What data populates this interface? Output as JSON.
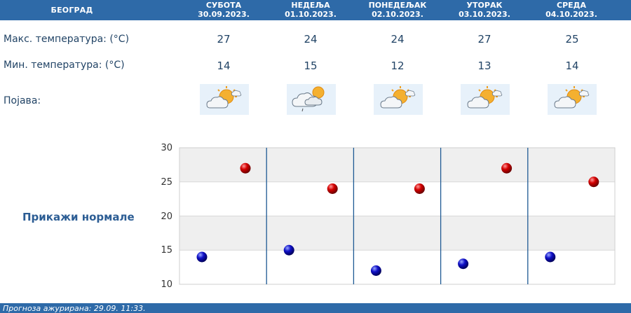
{
  "header": {
    "city": "БЕОГРАД",
    "days": [
      {
        "name": "СУБОТА",
        "date": "30.09.2023."
      },
      {
        "name": "НЕДЕЉА",
        "date": "01.10.2023."
      },
      {
        "name": "ПОНЕДЕЉАК",
        "date": "02.10.2023."
      },
      {
        "name": "УТОРАК",
        "date": "03.10.2023."
      },
      {
        "name": "СРЕДА",
        "date": "04.10.2023."
      }
    ]
  },
  "rows": {
    "max_label": "Макс. температура: (°C)",
    "min_label": "Мин. температура: (°C)",
    "weather_label": "Појава:"
  },
  "max_temps": [
    "27",
    "24",
    "24",
    "27",
    "25"
  ],
  "min_temps": [
    "14",
    "15",
    "12",
    "13",
    "14"
  ],
  "weather_icons": [
    "partly-sunny-icon",
    "cloud-sun-drizzle-icon",
    "partly-sunny-icon",
    "partly-sunny-icon",
    "partly-sunny-icon"
  ],
  "normals_link": "Прикажи нормале",
  "footer": "Прогноза ажурирана:  29.09.  11:33.",
  "colors": {
    "header": "#2e6aa8",
    "max_marker": "#cc0000",
    "min_marker": "#0000aa",
    "band": "#efefef",
    "divider": "#1f5a94"
  },
  "chart_data": {
    "type": "scatter",
    "categories": [
      "30.09.2023.",
      "01.10.2023.",
      "02.10.2023.",
      "03.10.2023.",
      "04.10.2023."
    ],
    "series": [
      {
        "values": [
          27,
          24,
          24,
          27,
          25
        ]
      },
      {
        "values": [
          14,
          15,
          12,
          13,
          14
        ]
      }
    ],
    "yticks": [
      "30",
      "25",
      "20",
      "15",
      "10"
    ],
    "ylim": [
      10,
      30
    ],
    "grid": true
  }
}
